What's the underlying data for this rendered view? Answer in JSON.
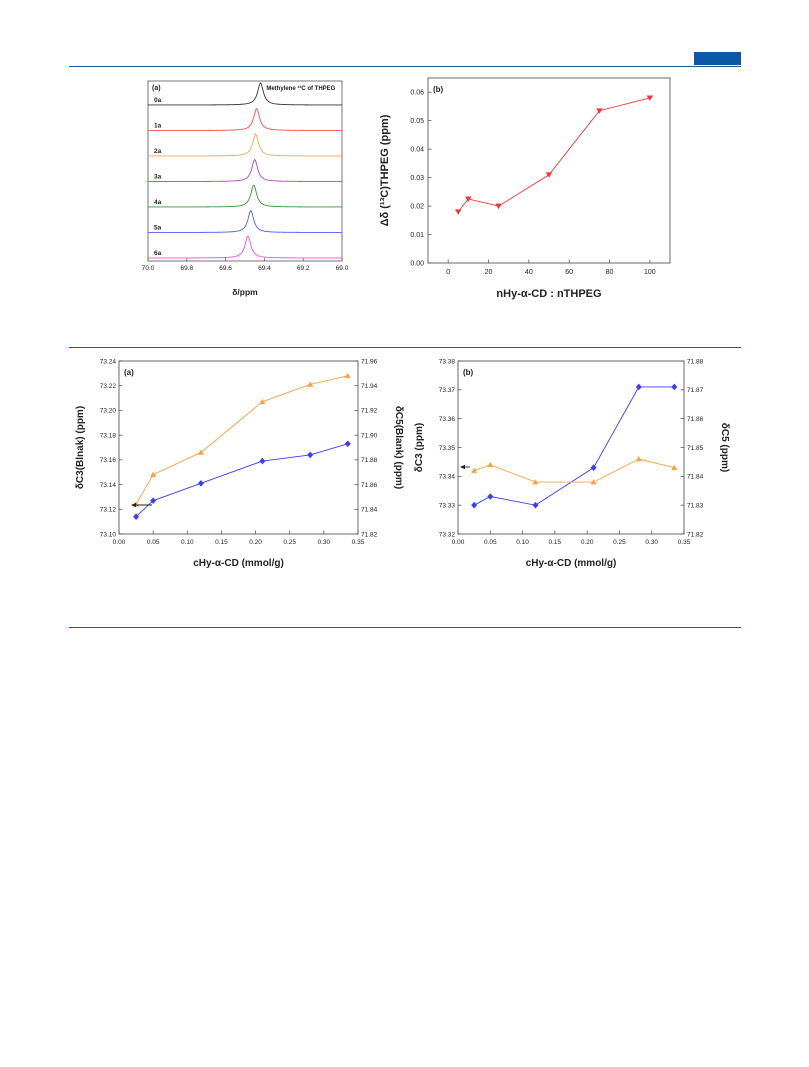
{
  "colors": {
    "rule": "#1f5a96",
    "tab": "#0a58a8",
    "nmr": [
      "#333333",
      "#ff4c4c",
      "#ffa64c",
      "#a84ca8",
      "#2f9a3a",
      "#4c5cff",
      "#ff4ce0"
    ],
    "red_series": "#ff3030",
    "orange_series": "#ffa03c",
    "blue_series": "#3c3cff"
  },
  "chart_data": [
    {
      "id": "fig1a",
      "type": "line",
      "panel_label": "(a)",
      "annotation": "Methylene ¹³C of THPEG",
      "xlabel": "δ/ppm",
      "xlim": [
        70.0,
        69.0
      ],
      "xticks": [
        "70.0",
        "69.8",
        "69.6",
        "69.4",
        "69.2",
        "69.0"
      ],
      "xtick_values": [
        70.0,
        69.8,
        69.6,
        69.4,
        69.2,
        69.0
      ],
      "series": [
        {
          "name": "0a",
          "peak": 69.42
        },
        {
          "name": "1a",
          "peak": 69.44
        },
        {
          "name": "2a",
          "peak": 69.445
        },
        {
          "name": "3a",
          "peak": 69.45
        },
        {
          "name": "4a",
          "peak": 69.455
        },
        {
          "name": "5a",
          "peak": 69.47
        },
        {
          "name": "6a",
          "peak": 69.485
        }
      ]
    },
    {
      "id": "fig1b",
      "type": "line",
      "panel_label": "(b)",
      "ylabel": "Δδ (¹³C)THPEG (ppm)",
      "xlabel": "nHy-α-CD : nTHPEG",
      "xlim": [
        -10,
        110
      ],
      "ylim": [
        0.0,
        0.065
      ],
      "xticks": [
        "0",
        "20",
        "40",
        "60",
        "80",
        "100"
      ],
      "xtick_values": [
        0,
        20,
        40,
        60,
        80,
        100
      ],
      "yticks": [
        "0.00",
        "0.01",
        "0.02",
        "0.03",
        "0.04",
        "0.05",
        "0.06"
      ],
      "ytick_values": [
        0,
        0.01,
        0.02,
        0.03,
        0.04,
        0.05,
        0.06
      ],
      "x": [
        5,
        10,
        25,
        50,
        75,
        100
      ],
      "y": [
        0.018,
        0.0225,
        0.02,
        0.031,
        0.0535,
        0.058
      ]
    },
    {
      "id": "fig2a",
      "type": "line",
      "panel_label": "(a)",
      "ylabel_left": "δC3(Blnak) (ppm)",
      "ylabel_right": "δC5(Blank) (ppm)",
      "xlabel": "cHy-α-CD (mmol/g)",
      "xlim": [
        0.0,
        0.35
      ],
      "ylim_left": [
        73.1,
        73.24
      ],
      "ylim_right": [
        71.82,
        71.96
      ],
      "xticks": [
        "0.00",
        "0.05",
        "0.10",
        "0.15",
        "0.20",
        "0.25",
        "0.30",
        "0.35"
      ],
      "xtick_values": [
        0,
        0.05,
        0.1,
        0.15,
        0.2,
        0.25,
        0.3,
        0.35
      ],
      "yticks_left": [
        "73.10",
        "73.12",
        "73.14",
        "73.16",
        "73.18",
        "73.20",
        "73.22",
        "73.24"
      ],
      "ytick_values_left": [
        73.1,
        73.12,
        73.14,
        73.16,
        73.18,
        73.2,
        73.22,
        73.24
      ],
      "yticks_right": [
        "71.82",
        "71.84",
        "71.86",
        "71.88",
        "71.90",
        "71.92",
        "71.94",
        "71.96"
      ],
      "ytick_values_right": [
        71.82,
        71.84,
        71.86,
        71.88,
        71.9,
        71.92,
        71.94,
        71.96
      ],
      "x": [
        0.025,
        0.05,
        0.12,
        0.21,
        0.28,
        0.335
      ],
      "series": [
        {
          "axis": "left",
          "marker": "diamond",
          "values": [
            73.114,
            73.127,
            73.141,
            73.159,
            73.164,
            73.173
          ]
        },
        {
          "axis": "right",
          "marker": "triangle",
          "values": [
            71.844,
            71.868,
            71.886,
            71.927,
            71.941,
            71.948
          ]
        }
      ]
    },
    {
      "id": "fig2b",
      "type": "line",
      "panel_label": "(b)",
      "ylabel_left": "δC3 (ppm)",
      "ylabel_right": "δC5 (ppm)",
      "xlabel": "cHy-α-CD (mmol/g)",
      "xlim": [
        0.0,
        0.35
      ],
      "ylim_left": [
        73.32,
        73.38
      ],
      "ylim_right": [
        71.82,
        71.88
      ],
      "xticks": [
        "0.00",
        "0.05",
        "0.10",
        "0.15",
        "0.20",
        "0.25",
        "0.30",
        "0.35"
      ],
      "xtick_values": [
        0,
        0.05,
        0.1,
        0.15,
        0.2,
        0.25,
        0.3,
        0.35
      ],
      "yticks_left": [
        "73.32",
        "73.33",
        "73.34",
        "73.35",
        "73.36",
        "73.37",
        "73.38"
      ],
      "ytick_values_left": [
        73.32,
        73.33,
        73.34,
        73.35,
        73.36,
        73.37,
        73.38
      ],
      "yticks_right": [
        "71.82",
        "71.83",
        "71.84",
        "71.85",
        "71.86",
        "71.87",
        "71.88"
      ],
      "ytick_values_right": [
        71.82,
        71.83,
        71.84,
        71.85,
        71.86,
        71.87,
        71.88
      ],
      "x": [
        0.025,
        0.05,
        0.12,
        0.21,
        0.28,
        0.335
      ],
      "series": [
        {
          "axis": "left",
          "marker": "diamond",
          "values": [
            73.33,
            73.333,
            73.33,
            73.343,
            73.371,
            73.371
          ]
        },
        {
          "axis": "right",
          "marker": "triangle",
          "values": [
            71.842,
            71.844,
            71.838,
            71.838,
            71.846,
            71.843
          ]
        }
      ]
    }
  ]
}
